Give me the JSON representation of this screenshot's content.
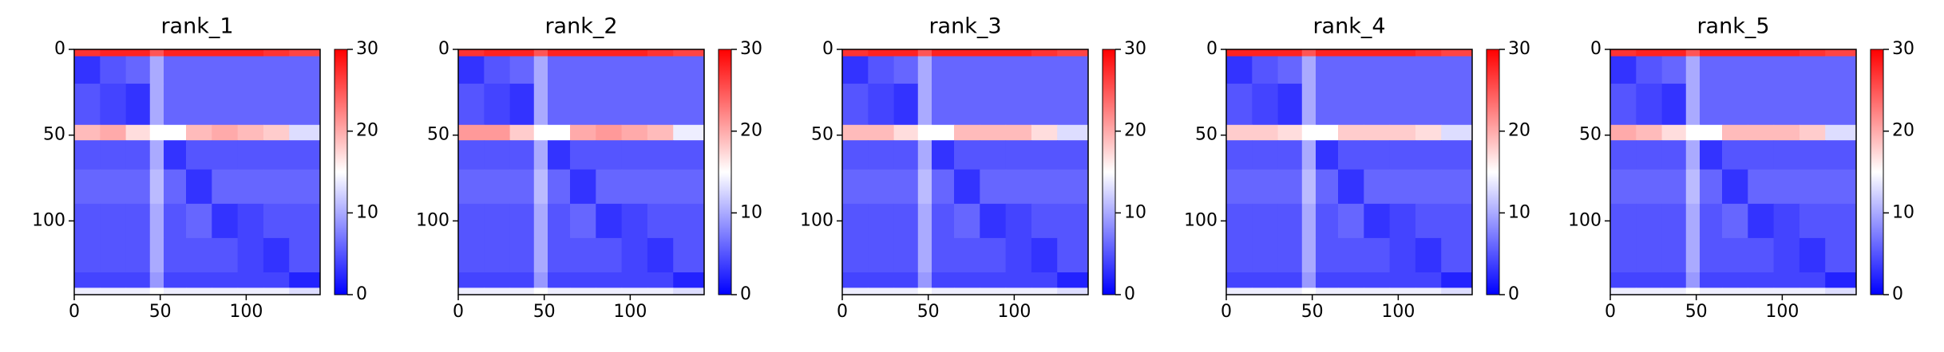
{
  "chart_data": [
    {
      "type": "heatmap",
      "title": "rank_1",
      "colormap": "bwr",
      "xbins": [
        0,
        15,
        30,
        44,
        52,
        65,
        80,
        95,
        110,
        125,
        143
      ],
      "ybins": [
        0,
        4,
        20,
        44,
        53,
        70,
        90,
        110,
        130,
        139,
        143
      ],
      "values": [
        [
          27,
          28,
          28,
          25,
          28,
          28,
          28,
          28,
          27,
          26
        ],
        [
          3,
          5,
          6,
          10,
          6,
          6,
          6,
          6,
          6,
          6
        ],
        [
          5,
          4,
          3,
          10,
          6,
          6,
          6,
          6,
          6,
          6
        ],
        [
          19,
          20,
          17,
          15,
          15,
          19,
          20,
          19,
          18,
          13
        ],
        [
          5,
          5,
          5,
          10,
          3,
          5,
          5,
          5,
          5,
          5
        ],
        [
          6,
          6,
          6,
          11,
          6,
          3,
          6,
          6,
          6,
          6
        ],
        [
          5,
          5,
          5,
          10,
          5,
          6,
          3,
          4,
          5,
          5
        ],
        [
          5,
          5,
          5,
          10,
          5,
          5,
          5,
          4,
          3,
          5
        ],
        [
          4,
          4,
          4,
          9,
          4,
          4,
          4,
          4,
          4,
          2
        ],
        [
          14,
          14,
          14,
          15,
          14,
          14,
          14,
          14,
          14,
          13
        ]
      ],
      "xlim": [
        0,
        143
      ],
      "ylim": [
        143,
        0
      ],
      "xticks": [
        0,
        50,
        100
      ],
      "yticks": [
        0,
        50,
        100
      ],
      "clim": [
        0,
        30
      ],
      "cticks": [
        0,
        10,
        20,
        30
      ]
    },
    {
      "type": "heatmap",
      "title": "rank_2",
      "colormap": "bwr",
      "xbins": [
        0,
        15,
        30,
        44,
        52,
        65,
        80,
        95,
        110,
        125,
        143
      ],
      "ybins": [
        0,
        4,
        20,
        44,
        53,
        70,
        90,
        110,
        130,
        139,
        143
      ],
      "values": [
        [
          27,
          28,
          28,
          25,
          28,
          28,
          28,
          28,
          27,
          26
        ],
        [
          3,
          5,
          6,
          10,
          6,
          6,
          6,
          6,
          6,
          6
        ],
        [
          5,
          4,
          3,
          10,
          6,
          6,
          6,
          6,
          6,
          6
        ],
        [
          21,
          21,
          18,
          15,
          15,
          20,
          21,
          20,
          19,
          14
        ],
        [
          5,
          5,
          5,
          10,
          3,
          5,
          5,
          5,
          5,
          5
        ],
        [
          6,
          6,
          6,
          11,
          6,
          3,
          6,
          6,
          6,
          6
        ],
        [
          5,
          5,
          5,
          10,
          5,
          6,
          3,
          4,
          5,
          5
        ],
        [
          5,
          5,
          5,
          10,
          5,
          5,
          5,
          4,
          3,
          5
        ],
        [
          4,
          4,
          4,
          9,
          4,
          4,
          4,
          4,
          4,
          2
        ],
        [
          14,
          14,
          14,
          15,
          14,
          14,
          14,
          14,
          14,
          13
        ]
      ],
      "xlim": [
        0,
        143
      ],
      "ylim": [
        143,
        0
      ],
      "xticks": [
        0,
        50,
        100
      ],
      "yticks": [
        0,
        50,
        100
      ],
      "clim": [
        0,
        30
      ],
      "cticks": [
        0,
        10,
        20,
        30
      ]
    },
    {
      "type": "heatmap",
      "title": "rank_3",
      "colormap": "bwr",
      "xbins": [
        0,
        15,
        30,
        44,
        52,
        65,
        80,
        95,
        110,
        125,
        143
      ],
      "ybins": [
        0,
        4,
        20,
        44,
        53,
        70,
        90,
        110,
        130,
        139,
        143
      ],
      "values": [
        [
          27,
          28,
          28,
          25,
          28,
          28,
          28,
          28,
          27,
          26
        ],
        [
          3,
          5,
          6,
          10,
          6,
          6,
          6,
          6,
          6,
          6
        ],
        [
          5,
          4,
          3,
          10,
          6,
          6,
          6,
          6,
          6,
          6
        ],
        [
          19,
          19,
          17,
          15,
          15,
          19,
          19,
          19,
          17,
          13
        ],
        [
          5,
          5,
          5,
          10,
          3,
          5,
          5,
          5,
          5,
          5
        ],
        [
          6,
          6,
          6,
          11,
          6,
          3,
          6,
          6,
          6,
          6
        ],
        [
          5,
          5,
          5,
          10,
          5,
          6,
          3,
          4,
          5,
          5
        ],
        [
          5,
          5,
          5,
          10,
          5,
          5,
          5,
          4,
          3,
          5
        ],
        [
          4,
          4,
          4,
          9,
          4,
          4,
          4,
          4,
          4,
          2
        ],
        [
          14,
          14,
          14,
          15,
          14,
          14,
          14,
          14,
          14,
          13
        ]
      ],
      "xlim": [
        0,
        143
      ],
      "ylim": [
        143,
        0
      ],
      "xticks": [
        0,
        50,
        100
      ],
      "yticks": [
        0,
        50,
        100
      ],
      "clim": [
        0,
        30
      ],
      "cticks": [
        0,
        10,
        20,
        30
      ]
    },
    {
      "type": "heatmap",
      "title": "rank_4",
      "colormap": "bwr",
      "xbins": [
        0,
        15,
        30,
        44,
        52,
        65,
        80,
        95,
        110,
        125,
        143
      ],
      "ybins": [
        0,
        4,
        20,
        44,
        53,
        70,
        90,
        110,
        130,
        139,
        143
      ],
      "values": [
        [
          28,
          28,
          28,
          25,
          28,
          28,
          28,
          28,
          27,
          26
        ],
        [
          3,
          5,
          6,
          10,
          6,
          6,
          6,
          6,
          6,
          6
        ],
        [
          5,
          4,
          3,
          10,
          6,
          6,
          6,
          6,
          6,
          6
        ],
        [
          18,
          18,
          17,
          15,
          15,
          18,
          18,
          18,
          17,
          13
        ],
        [
          5,
          5,
          5,
          10,
          3,
          5,
          5,
          5,
          5,
          5
        ],
        [
          6,
          6,
          6,
          11,
          6,
          3,
          6,
          6,
          6,
          6
        ],
        [
          5,
          5,
          5,
          10,
          5,
          6,
          3,
          4,
          5,
          5
        ],
        [
          5,
          5,
          5,
          10,
          5,
          5,
          5,
          4,
          3,
          5
        ],
        [
          4,
          4,
          4,
          9,
          4,
          4,
          4,
          4,
          4,
          2
        ],
        [
          14,
          14,
          14,
          15,
          14,
          14,
          14,
          14,
          14,
          13
        ]
      ],
      "xlim": [
        0,
        143
      ],
      "ylim": [
        143,
        0
      ],
      "xticks": [
        0,
        50,
        100
      ],
      "yticks": [
        0,
        50,
        100
      ],
      "clim": [
        0,
        30
      ],
      "cticks": [
        0,
        10,
        20,
        30
      ]
    },
    {
      "type": "heatmap",
      "title": "rank_5",
      "colormap": "bwr",
      "xbins": [
        0,
        15,
        30,
        44,
        52,
        65,
        80,
        95,
        110,
        125,
        143
      ],
      "ybins": [
        0,
        4,
        20,
        44,
        53,
        70,
        90,
        110,
        130,
        139,
        143
      ],
      "values": [
        [
          27,
          28,
          28,
          25,
          28,
          28,
          28,
          28,
          27,
          26
        ],
        [
          3,
          5,
          6,
          10,
          6,
          6,
          6,
          6,
          6,
          6
        ],
        [
          5,
          4,
          3,
          10,
          6,
          6,
          6,
          6,
          6,
          6
        ],
        [
          20,
          19,
          17,
          15,
          15,
          19,
          19,
          19,
          18,
          13
        ],
        [
          5,
          5,
          5,
          10,
          3,
          5,
          5,
          5,
          5,
          5
        ],
        [
          6,
          6,
          6,
          11,
          6,
          3,
          6,
          6,
          6,
          6
        ],
        [
          5,
          5,
          5,
          10,
          5,
          6,
          3,
          4,
          5,
          5
        ],
        [
          5,
          5,
          5,
          10,
          5,
          5,
          5,
          4,
          3,
          5
        ],
        [
          4,
          4,
          4,
          9,
          4,
          4,
          4,
          4,
          4,
          2
        ],
        [
          14,
          14,
          14,
          15,
          14,
          14,
          14,
          14,
          14,
          13
        ]
      ],
      "xlim": [
        0,
        143
      ],
      "ylim": [
        143,
        0
      ],
      "xticks": [
        0,
        50,
        100
      ],
      "yticks": [
        0,
        50,
        100
      ],
      "clim": [
        0,
        30
      ],
      "cticks": [
        0,
        10,
        20,
        30
      ]
    }
  ]
}
